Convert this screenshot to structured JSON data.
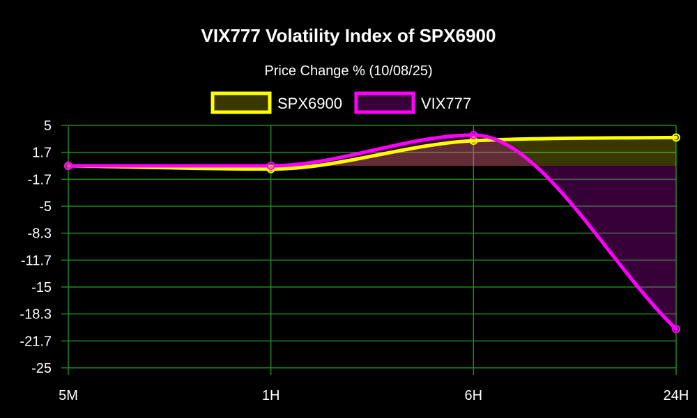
{
  "chart_data": {
    "type": "line",
    "title": "VIX777 Volatility Index of SPX6900",
    "subtitle": "Price Change % (10/08/25)",
    "categories": [
      "5M",
      "1H",
      "6H",
      "24H"
    ],
    "y_ticks": [
      "5",
      "1.7",
      "-1.7",
      "-5",
      "-8.3",
      "-11.7",
      "-15",
      "-18.3",
      "-21.7",
      "-25"
    ],
    "ylim": [
      -25,
      5
    ],
    "grid": true,
    "legend_position": "top-center",
    "series": [
      {
        "name": "SPX6900",
        "values": [
          0.0,
          -0.4,
          3.1,
          3.5
        ],
        "color": "#ffff00",
        "fill": "rgba(255,255,0,0.22)"
      },
      {
        "name": "VIX777",
        "values": [
          0.0,
          0.0,
          3.8,
          -20.2
        ],
        "color": "#ff00ff",
        "fill": "rgba(255,0,255,0.22)"
      }
    ]
  }
}
